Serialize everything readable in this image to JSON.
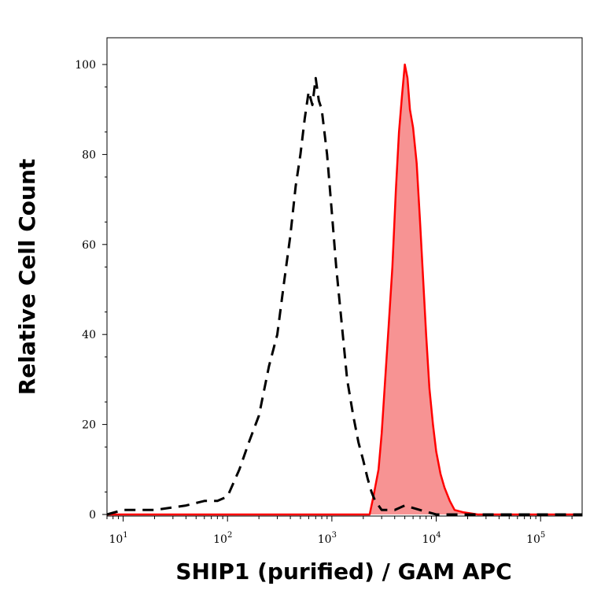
{
  "chart_data": {
    "type": "area",
    "title": "",
    "xlabel": "SHIP1 (purified) / GAM APC",
    "ylabel": "Relative Cell Count",
    "x_scale": "log",
    "xlim": [
      7,
      250000
    ],
    "ylim": [
      0,
      100
    ],
    "grid": false,
    "x_ticks": [
      {
        "base": "10",
        "exp": "1",
        "value": 10
      },
      {
        "base": "10",
        "exp": "2",
        "value": 100
      },
      {
        "base": "10",
        "exp": "3",
        "value": 1000
      },
      {
        "base": "10",
        "exp": "4",
        "value": 10000
      },
      {
        "base": "10",
        "exp": "5",
        "value": 100000
      }
    ],
    "y_ticks": [
      {
        "label": "0",
        "value": 0
      },
      {
        "label": "20",
        "value": 20
      },
      {
        "label": "40",
        "value": 40
      },
      {
        "label": "60",
        "value": 60
      },
      {
        "label": "80",
        "value": 80
      },
      {
        "label": "100",
        "value": 100
      }
    ],
    "series": [
      {
        "style": "dashed",
        "color": "#000000",
        "fill": "none",
        "x": [
          7,
          10,
          20,
          40,
          60,
          80,
          100,
          130,
          160,
          200,
          250,
          300,
          350,
          400,
          450,
          500,
          550,
          600,
          650,
          700,
          750,
          800,
          900,
          1000,
          1100,
          1200,
          1400,
          1600,
          1800,
          2000,
          2200,
          2400,
          2600,
          2800,
          3000,
          4000,
          5000,
          7000,
          10000,
          20000,
          50000,
          100000,
          250000
        ],
        "values": [
          0,
          1,
          1,
          2,
          3,
          3,
          4,
          10,
          16,
          22,
          33,
          40,
          52,
          62,
          73,
          80,
          88,
          94,
          91,
          97,
          92,
          90,
          80,
          67,
          55,
          46,
          30,
          22,
          16,
          12,
          8,
          5,
          3,
          2,
          1,
          1,
          2,
          1,
          0,
          0,
          0,
          0,
          0
        ]
      },
      {
        "style": "filled",
        "color": "#ff0000",
        "fill": "#f79393",
        "x": [
          7,
          1000,
          2300,
          2500,
          2800,
          3000,
          3200,
          3500,
          3800,
          4100,
          4400,
          4700,
          5000,
          5300,
          5600,
          6000,
          6500,
          7000,
          7500,
          8000,
          8600,
          9300,
          10000,
          11000,
          12000,
          13500,
          15000,
          18000,
          25000,
          50000,
          250000
        ],
        "values": [
          0,
          0,
          0,
          4,
          10,
          18,
          28,
          42,
          55,
          72,
          85,
          93,
          100,
          97,
          90,
          86,
          78,
          65,
          52,
          40,
          28,
          20,
          14,
          9,
          6,
          3,
          1,
          0.5,
          0,
          0,
          0
        ]
      }
    ]
  }
}
